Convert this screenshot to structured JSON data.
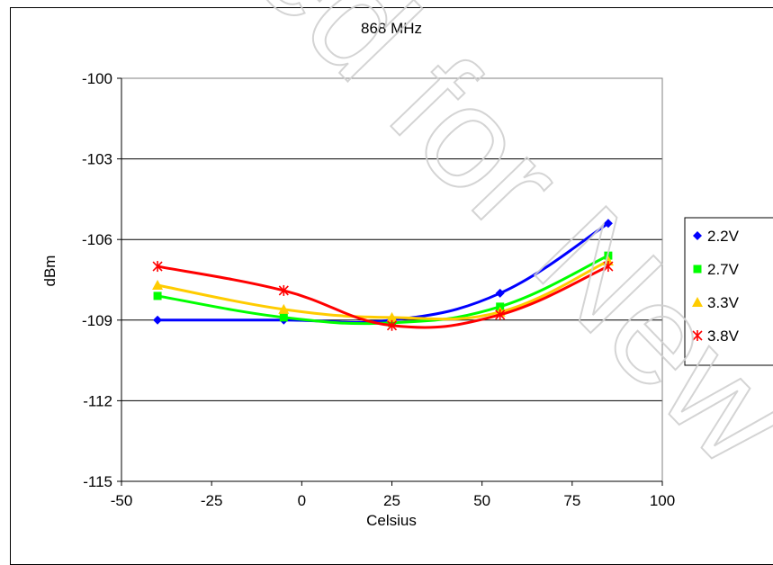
{
  "chart_data": {
    "type": "line",
    "title": "868 MHz",
    "xlabel": "Celsius",
    "ylabel": "dBm",
    "xlim": [
      -50,
      100
    ],
    "ylim": [
      -115,
      -100
    ],
    "xticks": [
      -50,
      -25,
      0,
      25,
      50,
      75,
      100
    ],
    "yticks": [
      -100,
      -103,
      -106,
      -109,
      -112,
      -115
    ],
    "grid": "horizontal",
    "legend_position": "right",
    "x": [
      -40,
      -5,
      25,
      55,
      85
    ],
    "series": [
      {
        "name": "2.2V",
        "color": "#0000ff",
        "marker": "diamond",
        "values": [
          -109.0,
          -109.0,
          -109.0,
          -108.0,
          -105.4
        ]
      },
      {
        "name": "2.7V",
        "color": "#00ff00",
        "marker": "square",
        "values": [
          -108.1,
          -108.9,
          -109.1,
          -108.5,
          -106.6
        ]
      },
      {
        "name": "3.3V",
        "color": "#ffcc00",
        "marker": "triangle",
        "values": [
          -107.7,
          -108.6,
          -108.9,
          -108.7,
          -106.8
        ]
      },
      {
        "name": "3.8V",
        "color": "#ff0000",
        "marker": "asterisk",
        "values": [
          -107.0,
          -107.9,
          -109.2,
          -108.8,
          -107.0
        ]
      }
    ]
  }
}
